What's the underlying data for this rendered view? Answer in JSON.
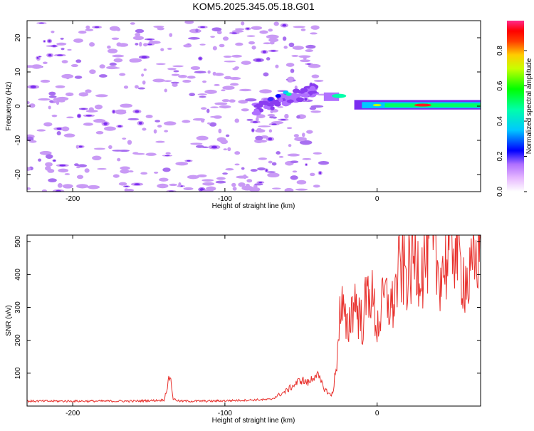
{
  "figure": {
    "title": "KOM5.2025.345.05.18.G01"
  },
  "chart_data": [
    {
      "type": "heatmap",
      "xlabel": "Height of straight line (km)",
      "ylabel": "Frequency (Hz)",
      "xlim": [
        -230,
        68
      ],
      "ylim": [
        -25,
        25
      ],
      "x_ticks": [
        -200,
        -100,
        0
      ],
      "x_tick_labels": [
        "-200",
        "-100",
        "0"
      ],
      "y_ticks": [
        -20,
        -10,
        0,
        10,
        20
      ],
      "y_tick_labels": [
        "-20",
        "-10",
        "0",
        "10",
        "20"
      ],
      "colorbar": {
        "label": "Normalized spectral amplitude",
        "range": [
          0,
          0.97
        ],
        "ticks": [
          0,
          0.2,
          0.4,
          0.6,
          0.8
        ],
        "tick_labels": [
          "0.0",
          "0.2",
          "0.4",
          "0.6",
          "0.8"
        ],
        "colormap": "rainbow-pink"
      },
      "features": [
        {
          "x": -230,
          "x_end": -35,
          "freq_range": [
            -25,
            25
          ],
          "amplitude": 0.1,
          "description": "scattered background noise"
        },
        {
          "x": -80,
          "x_end": -40,
          "freq_range": [
            -3,
            8
          ],
          "amplitude": 0.45,
          "description": "rising signal"
        },
        {
          "x": -35,
          "x_end": 68,
          "freq_range": [
            -1,
            4
          ],
          "amplitude": 0.95,
          "description": "strong signal band near 0 Hz"
        }
      ]
    },
    {
      "type": "line",
      "xlabel": "Height of straight line (km)",
      "ylabel": "SNR (v/v)",
      "xlim": [
        -230,
        68
      ],
      "ylim": [
        0,
        520
      ],
      "x_ticks": [
        -200,
        -100,
        0
      ],
      "x_tick_labels": [
        "-200",
        "-100",
        "0"
      ],
      "y_ticks": [
        100,
        200,
        300,
        400,
        500
      ],
      "y_tick_labels": [
        "100",
        "200",
        "300",
        "400",
        "500"
      ],
      "series": [
        {
          "color": "#e8302c",
          "x": [
            -230,
            -200,
            -160,
            -140,
            -136,
            -134,
            -130,
            -110,
            -70,
            -60,
            -50,
            -45,
            -40,
            -35,
            -30,
            -27,
            -25,
            -23,
            -20,
            -15,
            -10,
            -5,
            0,
            5,
            10,
            15,
            20,
            25,
            30,
            35,
            40,
            45,
            50,
            55,
            60,
            65,
            68
          ],
          "y": [
            15,
            15,
            15,
            18,
            95,
            22,
            15,
            15,
            20,
            45,
            80,
            70,
            100,
            55,
            30,
            100,
            270,
            300,
            220,
            330,
            250,
            370,
            240,
            330,
            300,
            420,
            400,
            450,
            420,
            500,
            410,
            430,
            510,
            420,
            370,
            440,
            505
          ]
        }
      ]
    }
  ],
  "colors": {
    "axis": "#000000",
    "line": "#e8302c",
    "noise_low": "#c99af5",
    "noise_mid": "#a86ff0"
  }
}
